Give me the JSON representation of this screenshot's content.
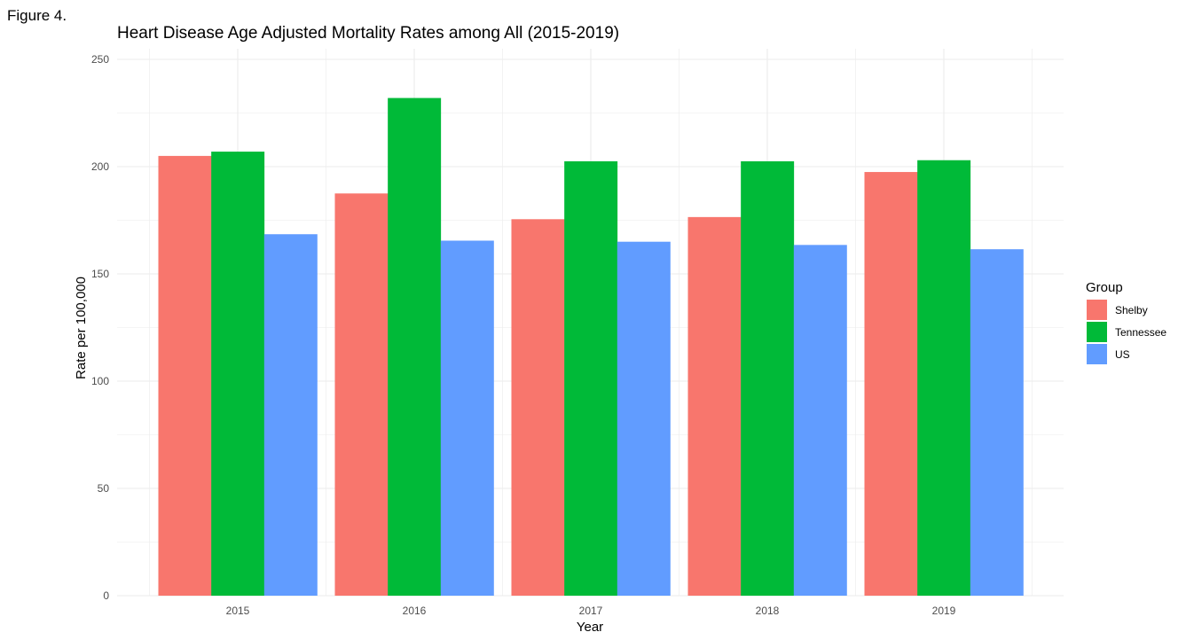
{
  "figure_label": "Figure 4.",
  "chart_data": {
    "type": "bar",
    "title": "Heart Disease Age Adjusted Mortality Rates among All (2015-2019)",
    "xlabel": "Year",
    "ylabel": "Rate per 100,000",
    "categories": [
      "2015",
      "2016",
      "2017",
      "2018",
      "2019"
    ],
    "series": [
      {
        "name": "Shelby",
        "color": "#F8766D",
        "values": [
          205,
          187.5,
          175.5,
          176.5,
          197.5
        ]
      },
      {
        "name": "Tennessee",
        "color": "#00BA38",
        "values": [
          207,
          232,
          202.5,
          202.5,
          203
        ]
      },
      {
        "name": "US",
        "color": "#619CFF",
        "values": [
          168.5,
          165.5,
          165,
          163.5,
          161.5
        ]
      }
    ],
    "ylim": [
      0,
      250
    ],
    "yticks": [
      "0",
      "50",
      "100",
      "150",
      "200",
      "250"
    ],
    "grid": true,
    "legend": {
      "title": "Group",
      "position": "right"
    }
  }
}
